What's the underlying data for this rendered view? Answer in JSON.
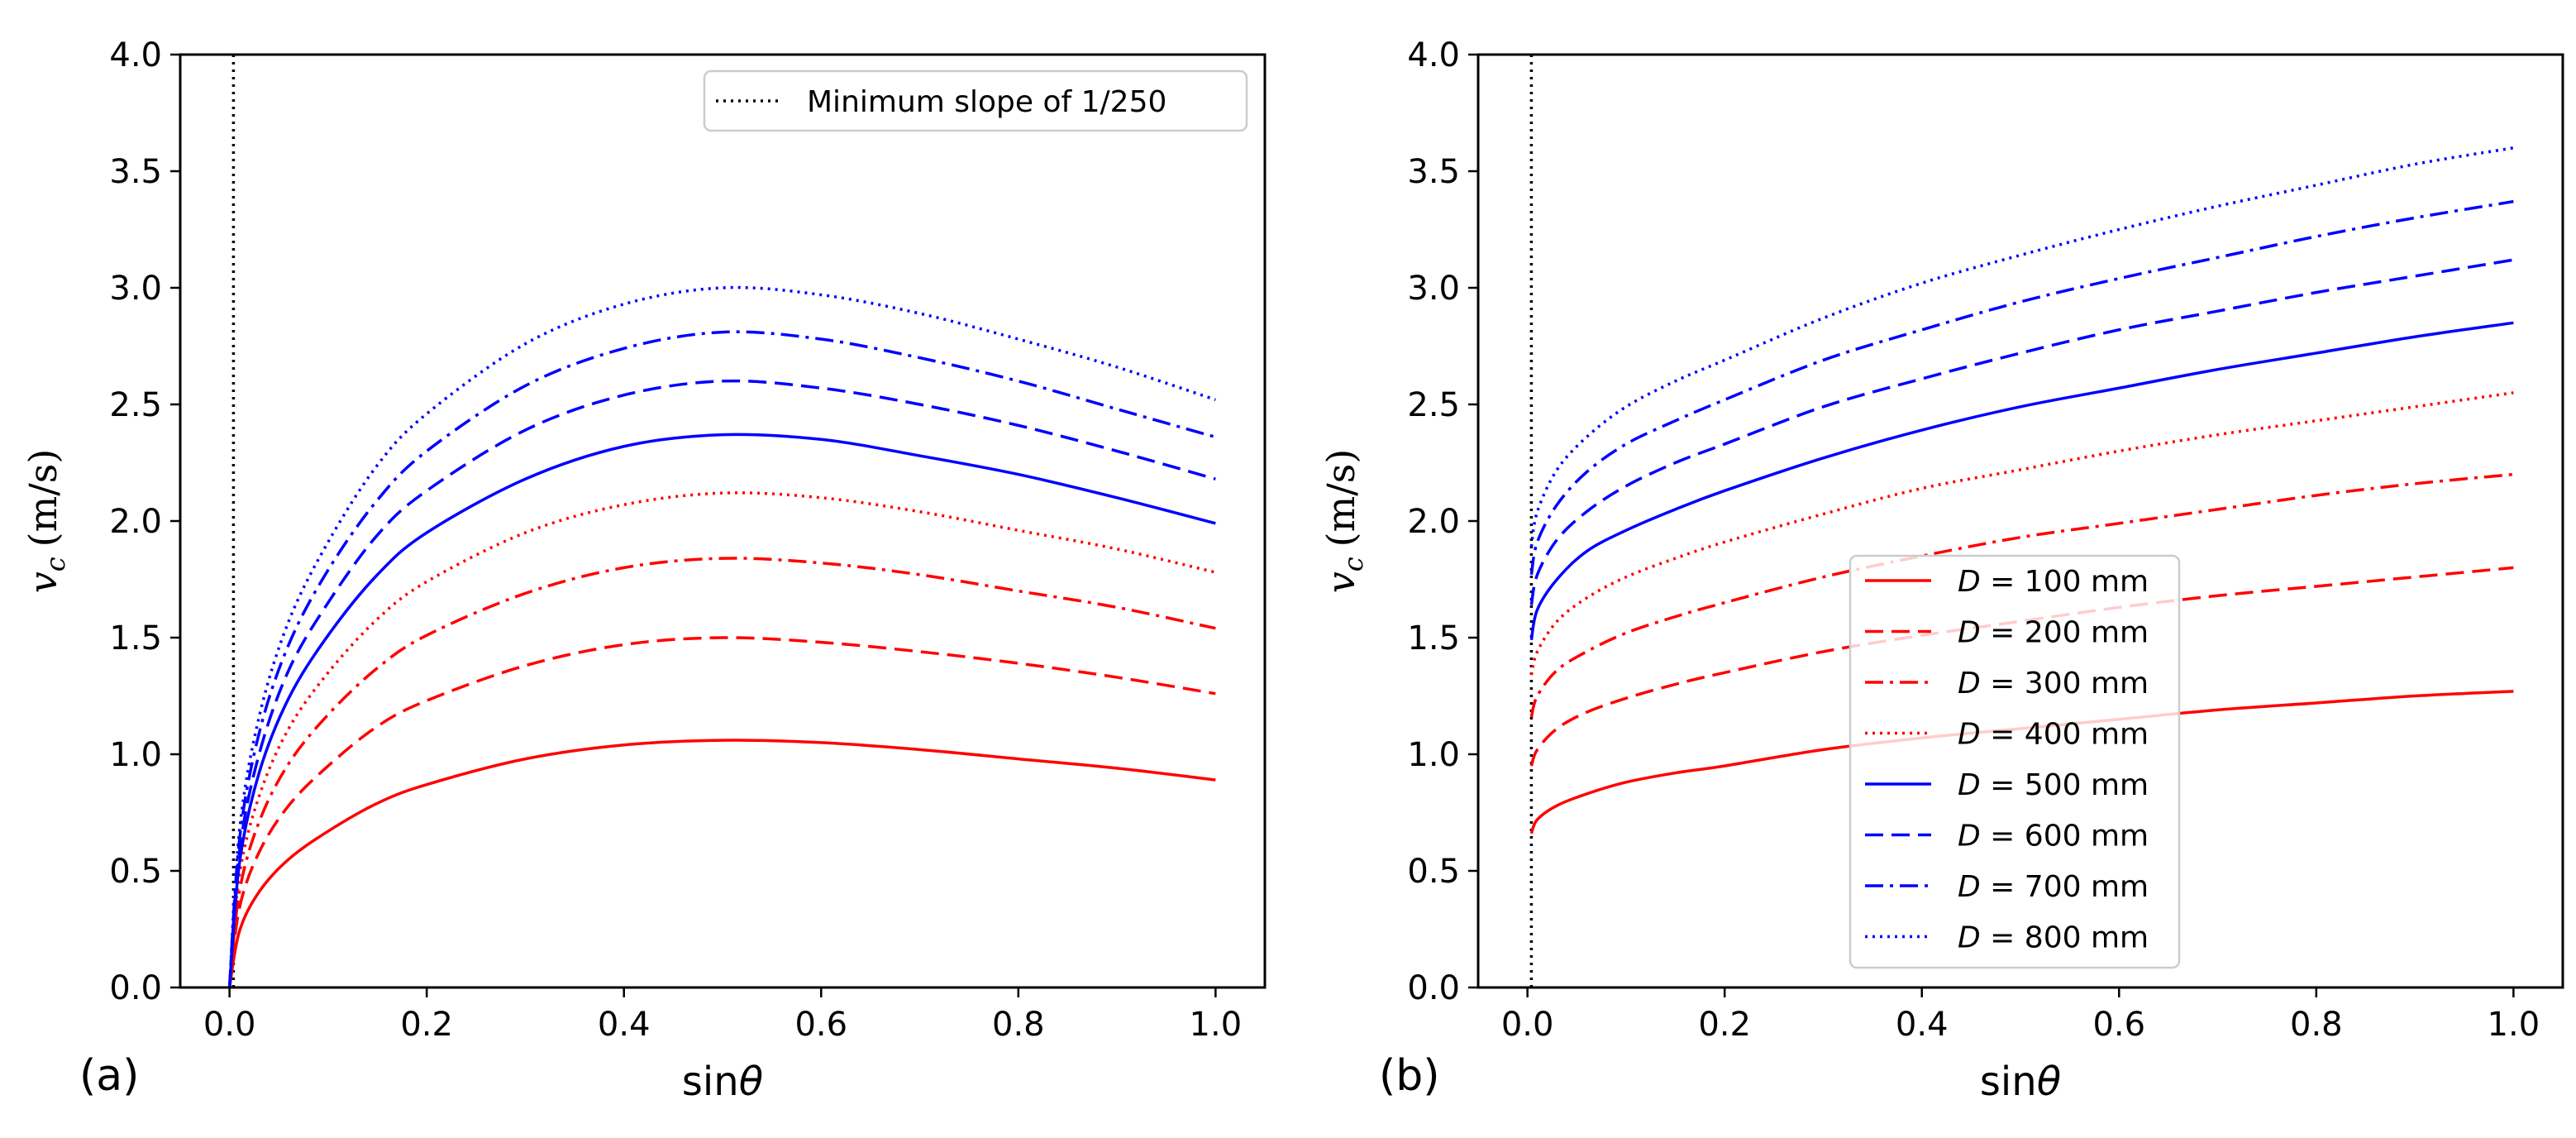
{
  "chart_data": [
    {
      "type": "line",
      "panel_label": "(a)",
      "xlabel_prefix": "sin",
      "xlabel_symbol": "θ",
      "ylabel_symbol": "v",
      "ylabel_subscript": "c",
      "ylabel_unit": "(m/s)",
      "xlim": [
        -0.05,
        1.05
      ],
      "ylim": [
        0.0,
        4.0
      ],
      "xticks": [
        "0.0",
        "0.2",
        "0.4",
        "0.6",
        "0.8",
        "1.0"
      ],
      "yticks": [
        "0.0",
        "0.5",
        "1.0",
        "1.5",
        "2.0",
        "2.5",
        "3.0",
        "3.5",
        "4.0"
      ],
      "reference_line": {
        "x": 0.004,
        "label": "Minimum slope of 1/250",
        "style": "dotted",
        "color": "#000000"
      },
      "legend": {
        "placement": "top-right",
        "entries": [
          "Minimum slope of 1/250"
        ]
      },
      "series": [
        {
          "name": "D = 100 mm",
          "diameter_mm": 100,
          "color": "#ff0000",
          "style": "solid",
          "x": [
            0,
            0.01,
            0.03,
            0.06,
            0.1,
            0.15,
            0.2,
            0.3,
            0.4,
            0.5,
            0.6,
            0.7,
            0.8,
            0.9,
            1.0
          ],
          "values": [
            0,
            0.24,
            0.41,
            0.55,
            0.67,
            0.79,
            0.87,
            0.98,
            1.04,
            1.06,
            1.05,
            1.02,
            0.98,
            0.94,
            0.89
          ]
        },
        {
          "name": "D = 200 mm",
          "diameter_mm": 200,
          "color": "#ff0000",
          "style": "dashed",
          "x": [
            0,
            0.01,
            0.03,
            0.06,
            0.1,
            0.15,
            0.2,
            0.3,
            0.4,
            0.5,
            0.6,
            0.7,
            0.8,
            0.9,
            1.0
          ],
          "values": [
            0,
            0.34,
            0.58,
            0.78,
            0.95,
            1.12,
            1.23,
            1.38,
            1.47,
            1.5,
            1.48,
            1.44,
            1.39,
            1.33,
            1.26
          ]
        },
        {
          "name": "D = 300 mm",
          "diameter_mm": 300,
          "color": "#ff0000",
          "style": "dashdot",
          "x": [
            0,
            0.01,
            0.03,
            0.06,
            0.1,
            0.15,
            0.2,
            0.3,
            0.4,
            0.5,
            0.6,
            0.7,
            0.8,
            0.9,
            1.0
          ],
          "values": [
            0,
            0.41,
            0.71,
            0.96,
            1.17,
            1.37,
            1.51,
            1.69,
            1.8,
            1.84,
            1.82,
            1.77,
            1.7,
            1.63,
            1.54
          ]
        },
        {
          "name": "D = 400 mm",
          "diameter_mm": 400,
          "color": "#ff0000",
          "style": "dotted",
          "x": [
            0,
            0.01,
            0.03,
            0.06,
            0.1,
            0.15,
            0.2,
            0.3,
            0.4,
            0.5,
            0.6,
            0.7,
            0.8,
            0.9,
            1.0
          ],
          "values": [
            0,
            0.48,
            0.82,
            1.11,
            1.35,
            1.58,
            1.74,
            1.95,
            2.07,
            2.12,
            2.1,
            2.04,
            1.96,
            1.88,
            1.78
          ]
        },
        {
          "name": "D = 500 mm",
          "diameter_mm": 500,
          "color": "#0000ff",
          "style": "solid",
          "x": [
            0,
            0.01,
            0.03,
            0.06,
            0.1,
            0.15,
            0.2,
            0.3,
            0.4,
            0.5,
            0.6,
            0.7,
            0.8,
            0.9,
            1.0
          ],
          "values": [
            0,
            0.53,
            0.92,
            1.24,
            1.51,
            1.77,
            1.95,
            2.18,
            2.32,
            2.37,
            2.35,
            2.28,
            2.2,
            2.1,
            1.99
          ]
        },
        {
          "name": "D = 600 mm",
          "diameter_mm": 600,
          "color": "#0000ff",
          "style": "dashed",
          "x": [
            0,
            0.01,
            0.03,
            0.06,
            0.1,
            0.15,
            0.2,
            0.3,
            0.4,
            0.5,
            0.6,
            0.7,
            0.8,
            0.9,
            1.0
          ],
          "values": [
            0,
            0.58,
            1.0,
            1.36,
            1.65,
            1.94,
            2.13,
            2.39,
            2.54,
            2.6,
            2.57,
            2.5,
            2.41,
            2.3,
            2.18
          ]
        },
        {
          "name": "D = 700 mm",
          "diameter_mm": 700,
          "color": "#0000ff",
          "style": "dashdot",
          "x": [
            0,
            0.01,
            0.03,
            0.06,
            0.1,
            0.15,
            0.2,
            0.3,
            0.4,
            0.5,
            0.6,
            0.7,
            0.8,
            0.9,
            1.0
          ],
          "values": [
            0,
            0.63,
            1.09,
            1.47,
            1.79,
            2.09,
            2.3,
            2.58,
            2.74,
            2.81,
            2.78,
            2.7,
            2.6,
            2.48,
            2.36
          ]
        },
        {
          "name": "D = 800 mm",
          "diameter_mm": 800,
          "color": "#0000ff",
          "style": "dotted",
          "x": [
            0,
            0.01,
            0.03,
            0.06,
            0.1,
            0.15,
            0.2,
            0.3,
            0.4,
            0.5,
            0.6,
            0.7,
            0.8,
            0.9,
            1.0
          ],
          "values": [
            0,
            0.67,
            1.16,
            1.57,
            1.91,
            2.24,
            2.46,
            2.76,
            2.93,
            3.0,
            2.97,
            2.89,
            2.78,
            2.66,
            2.52
          ]
        }
      ]
    },
    {
      "type": "line",
      "panel_label": "(b)",
      "xlabel_prefix": "sin",
      "xlabel_symbol": "θ",
      "ylabel_symbol": "v",
      "ylabel_subscript": "c",
      "ylabel_unit": "(m/s)",
      "xlim": [
        -0.05,
        1.05
      ],
      "ylim": [
        0.0,
        4.0
      ],
      "xticks": [
        "0.0",
        "0.2",
        "0.4",
        "0.6",
        "0.8",
        "1.0"
      ],
      "yticks": [
        "0.0",
        "0.5",
        "1.0",
        "1.5",
        "2.0",
        "2.5",
        "3.0",
        "3.5",
        "4.0"
      ],
      "reference_line": {
        "x": 0.004,
        "style": "dotted",
        "color": "#000000"
      },
      "legend": {
        "placement": "center-bottom",
        "entries": [
          "D = 100 mm",
          "D = 200 mm",
          "D = 300 mm",
          "D = 400 mm",
          "D = 500 mm",
          "D = 600 mm",
          "D = 700 mm",
          "D = 800 mm"
        ]
      },
      "series": [
        {
          "name": "D = 100 mm",
          "diameter_mm": 100,
          "color": "#ff0000",
          "style": "solid",
          "x": [
            0.004,
            0.01,
            0.03,
            0.06,
            0.1,
            0.15,
            0.2,
            0.3,
            0.4,
            0.5,
            0.6,
            0.7,
            0.8,
            0.9,
            1.0
          ],
          "values": [
            0.66,
            0.72,
            0.78,
            0.83,
            0.88,
            0.92,
            0.95,
            1.02,
            1.07,
            1.11,
            1.15,
            1.19,
            1.22,
            1.25,
            1.27
          ]
        },
        {
          "name": "D = 200 mm",
          "diameter_mm": 200,
          "color": "#ff0000",
          "style": "dashed",
          "x": [
            0.004,
            0.01,
            0.03,
            0.06,
            0.1,
            0.15,
            0.2,
            0.3,
            0.4,
            0.5,
            0.6,
            0.7,
            0.8,
            0.9,
            1.0
          ],
          "values": [
            0.95,
            1.02,
            1.11,
            1.18,
            1.24,
            1.3,
            1.35,
            1.44,
            1.51,
            1.57,
            1.63,
            1.68,
            1.72,
            1.76,
            1.8
          ]
        },
        {
          "name": "D = 300 mm",
          "diameter_mm": 300,
          "color": "#ff0000",
          "style": "dashdot",
          "x": [
            0.004,
            0.01,
            0.03,
            0.06,
            0.1,
            0.15,
            0.2,
            0.3,
            0.4,
            0.5,
            0.6,
            0.7,
            0.8,
            0.9,
            1.0
          ],
          "values": [
            1.16,
            1.25,
            1.36,
            1.44,
            1.52,
            1.59,
            1.65,
            1.76,
            1.85,
            1.93,
            1.99,
            2.05,
            2.11,
            2.16,
            2.2
          ]
        },
        {
          "name": "D = 400 mm",
          "diameter_mm": 400,
          "color": "#ff0000",
          "style": "dotted",
          "x": [
            0.004,
            0.01,
            0.03,
            0.06,
            0.1,
            0.15,
            0.2,
            0.3,
            0.4,
            0.5,
            0.6,
            0.7,
            0.8,
            0.9,
            1.0
          ],
          "values": [
            1.34,
            1.44,
            1.57,
            1.67,
            1.76,
            1.84,
            1.91,
            2.03,
            2.14,
            2.22,
            2.3,
            2.37,
            2.43,
            2.49,
            2.55
          ]
        },
        {
          "name": "D = 500 mm",
          "diameter_mm": 500,
          "color": "#0000ff",
          "style": "solid",
          "x": [
            0.004,
            0.01,
            0.03,
            0.06,
            0.1,
            0.15,
            0.2,
            0.3,
            0.4,
            0.5,
            0.6,
            0.7,
            0.8,
            0.9,
            1.0
          ],
          "values": [
            1.49,
            1.62,
            1.75,
            1.87,
            1.96,
            2.05,
            2.13,
            2.27,
            2.39,
            2.49,
            2.57,
            2.65,
            2.72,
            2.79,
            2.85
          ]
        },
        {
          "name": "D = 600 mm",
          "diameter_mm": 600,
          "color": "#0000ff",
          "style": "dashed",
          "x": [
            0.004,
            0.01,
            0.03,
            0.06,
            0.1,
            0.15,
            0.2,
            0.3,
            0.4,
            0.5,
            0.6,
            0.7,
            0.8,
            0.9,
            1.0
          ],
          "values": [
            1.64,
            1.77,
            1.92,
            2.04,
            2.15,
            2.25,
            2.33,
            2.49,
            2.61,
            2.72,
            2.82,
            2.9,
            2.98,
            3.05,
            3.12
          ]
        },
        {
          "name": "D = 700 mm",
          "diameter_mm": 700,
          "color": "#0000ff",
          "style": "dashdot",
          "x": [
            0.004,
            0.01,
            0.03,
            0.06,
            0.1,
            0.15,
            0.2,
            0.3,
            0.4,
            0.5,
            0.6,
            0.7,
            0.8,
            0.9,
            1.0
          ],
          "values": [
            1.77,
            1.91,
            2.07,
            2.21,
            2.33,
            2.43,
            2.52,
            2.69,
            2.82,
            2.94,
            3.04,
            3.13,
            3.22,
            3.3,
            3.37
          ]
        },
        {
          "name": "D = 800 mm",
          "diameter_mm": 800,
          "color": "#0000ff",
          "style": "dotted",
          "x": [
            0.004,
            0.01,
            0.03,
            0.06,
            0.1,
            0.15,
            0.2,
            0.3,
            0.4,
            0.5,
            0.6,
            0.7,
            0.8,
            0.9,
            1.0
          ],
          "values": [
            1.89,
            2.04,
            2.22,
            2.36,
            2.49,
            2.6,
            2.69,
            2.87,
            3.02,
            3.14,
            3.25,
            3.35,
            3.44,
            3.53,
            3.6
          ]
        }
      ]
    }
  ]
}
